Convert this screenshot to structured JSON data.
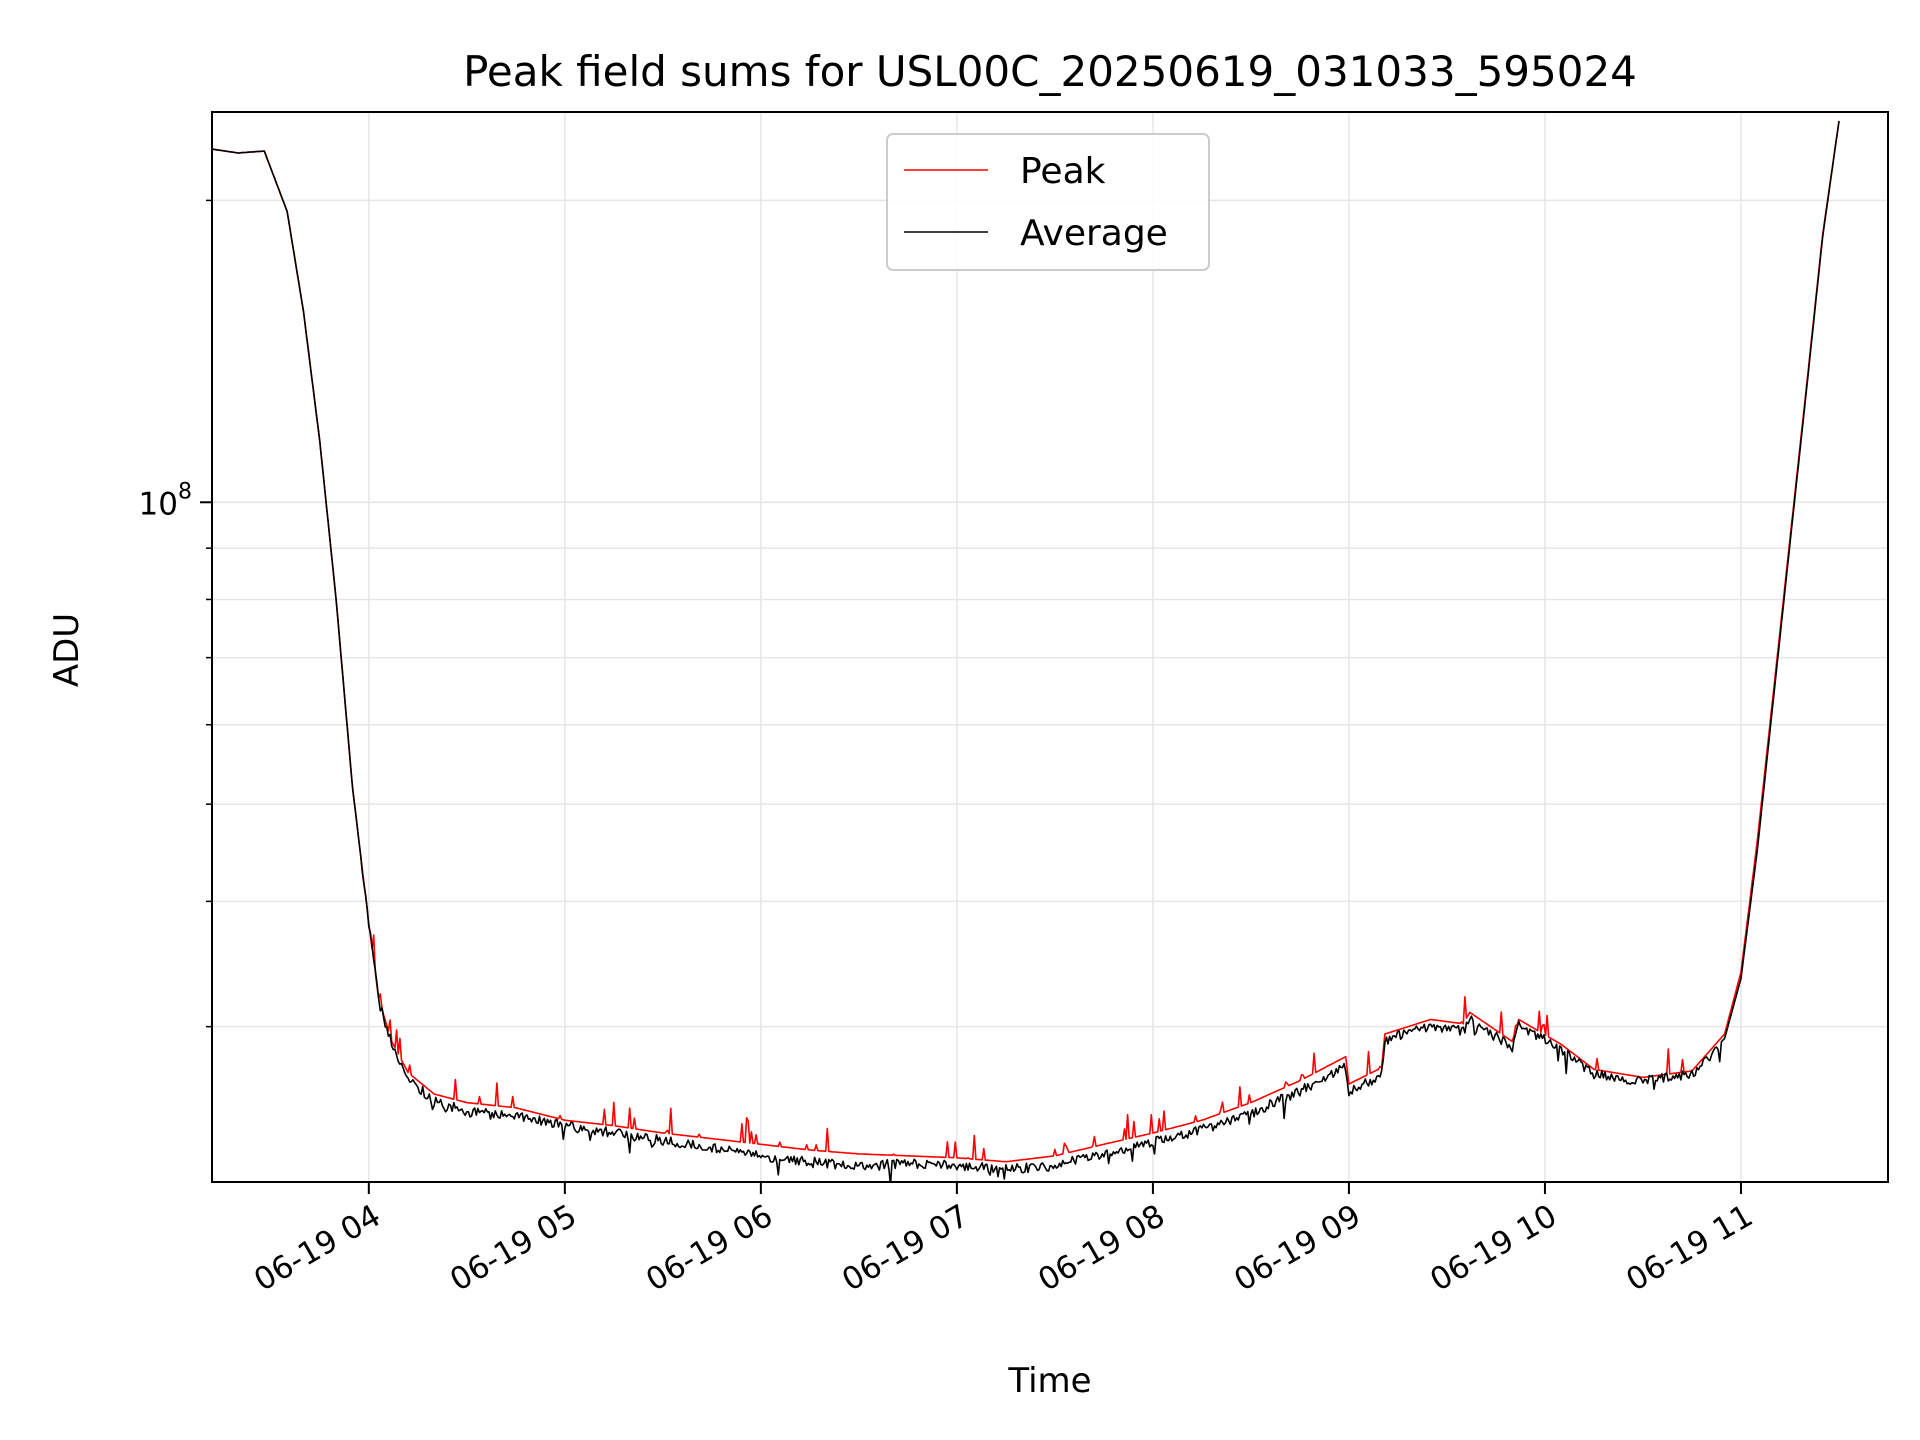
{
  "chart_data": {
    "type": "line",
    "title": "Peak field sums for USL00C_20250619_031033_595024",
    "xlabel": "Time",
    "ylabel": "ADU",
    "yscale": "log",
    "x_range": [
      "2025-06-19 03:12",
      "2025-06-19 11:45"
    ],
    "ylim": [
      21000000,
      245000000
    ],
    "x_ticks": [
      {
        "time": "2025-06-19 04:00",
        "label": "06-19 04"
      },
      {
        "time": "2025-06-19 05:00",
        "label": "06-19 05"
      },
      {
        "time": "2025-06-19 06:00",
        "label": "06-19 06"
      },
      {
        "time": "2025-06-19 07:00",
        "label": "06-19 07"
      },
      {
        "time": "2025-06-19 08:00",
        "label": "06-19 08"
      },
      {
        "time": "2025-06-19 09:00",
        "label": "06-19 09"
      },
      {
        "time": "2025-06-19 10:00",
        "label": "06-19 10"
      },
      {
        "time": "2025-06-19 11:00",
        "label": "06-19 11"
      }
    ],
    "y_major_ticks": [
      {
        "value": 100000000,
        "base": "10",
        "exp": "8"
      }
    ],
    "y_minor_ticks": [
      30000000,
      40000000,
      50000000,
      60000000,
      70000000,
      80000000,
      90000000,
      200000000
    ],
    "grid": true,
    "legend": {
      "position": "top-center"
    },
    "series": [
      {
        "name": "Peak",
        "color": "#ff0000",
        "points": [
          [
            "2025-06-19 03:12",
            225000000
          ],
          [
            "2025-06-19 03:20",
            223000000
          ],
          [
            "2025-06-19 03:28",
            224000000
          ],
          [
            "2025-06-19 03:35",
            195000000
          ],
          [
            "2025-06-19 03:40",
            155000000
          ],
          [
            "2025-06-19 03:45",
            115000000
          ],
          [
            "2025-06-19 03:50",
            80000000
          ],
          [
            "2025-06-19 03:55",
            52000000
          ],
          [
            "2025-06-19 04:00",
            38000000
          ],
          [
            "2025-06-19 04:03",
            32000000
          ],
          [
            "2025-06-19 04:07",
            29000000
          ],
          [
            "2025-06-19 04:12",
            27000000
          ],
          [
            "2025-06-19 04:20",
            25700000
          ],
          [
            "2025-06-19 04:30",
            25200000
          ],
          [
            "2025-06-19 04:45",
            24900000
          ],
          [
            "2025-06-19 05:00",
            24200000
          ],
          [
            "2025-06-19 05:15",
            23900000
          ],
          [
            "2025-06-19 05:30",
            23500000
          ],
          [
            "2025-06-19 05:45",
            23200000
          ],
          [
            "2025-06-19 06:00",
            22900000
          ],
          [
            "2025-06-19 06:15",
            22600000
          ],
          [
            "2025-06-19 06:30",
            22400000
          ],
          [
            "2025-06-19 06:45",
            22300000
          ],
          [
            "2025-06-19 07:00",
            22200000
          ],
          [
            "2025-06-19 07:15",
            22000000
          ],
          [
            "2025-06-19 07:30",
            22300000
          ],
          [
            "2025-06-19 07:45",
            22900000
          ],
          [
            "2025-06-19 08:00",
            23500000
          ],
          [
            "2025-06-19 08:15",
            24200000
          ],
          [
            "2025-06-19 08:30",
            25200000
          ],
          [
            "2025-06-19 08:45",
            26500000
          ],
          [
            "2025-06-19 08:59",
            28000000
          ],
          [
            "2025-06-19 09:00",
            26300000
          ],
          [
            "2025-06-19 09:10",
            27300000
          ],
          [
            "2025-06-19 09:11",
            29500000
          ],
          [
            "2025-06-19 09:25",
            30500000
          ],
          [
            "2025-06-19 09:35",
            30200000
          ],
          [
            "2025-06-19 09:37",
            31000000
          ],
          [
            "2025-06-19 09:50",
            29000000
          ],
          [
            "2025-06-19 09:52",
            30500000
          ],
          [
            "2025-06-19 10:05",
            28800000
          ],
          [
            "2025-06-19 10:15",
            27200000
          ],
          [
            "2025-06-19 10:30",
            26700000
          ],
          [
            "2025-06-19 10:45",
            27100000
          ],
          [
            "2025-06-19 10:55",
            29500000
          ],
          [
            "2025-06-19 11:00",
            34000000
          ],
          [
            "2025-06-19 11:05",
            46000000
          ],
          [
            "2025-06-19 11:10",
            65000000
          ],
          [
            "2025-06-19 11:15",
            92000000
          ],
          [
            "2025-06-19 11:20",
            130000000
          ],
          [
            "2025-06-19 11:25",
            185000000
          ],
          [
            "2025-06-19 11:30",
            240000000
          ]
        ]
      },
      {
        "name": "Average",
        "color": "#000000",
        "points": [
          [
            "2025-06-19 03:12",
            225000000
          ],
          [
            "2025-06-19 03:20",
            223000000
          ],
          [
            "2025-06-19 03:28",
            224000000
          ],
          [
            "2025-06-19 03:35",
            195000000
          ],
          [
            "2025-06-19 03:40",
            155000000
          ],
          [
            "2025-06-19 03:45",
            115000000
          ],
          [
            "2025-06-19 03:50",
            80000000
          ],
          [
            "2025-06-19 03:55",
            52000000
          ],
          [
            "2025-06-19 04:00",
            38000000
          ],
          [
            "2025-06-19 04:03",
            32000000
          ],
          [
            "2025-06-19 04:07",
            29000000
          ],
          [
            "2025-06-19 04:12",
            26800000
          ],
          [
            "2025-06-19 04:20",
            25400000
          ],
          [
            "2025-06-19 04:30",
            24800000
          ],
          [
            "2025-06-19 04:45",
            24500000
          ],
          [
            "2025-06-19 05:00",
            24000000
          ],
          [
            "2025-06-19 05:15",
            23600000
          ],
          [
            "2025-06-19 05:30",
            23200000
          ],
          [
            "2025-06-19 05:45",
            22800000
          ],
          [
            "2025-06-19 06:00",
            22400000
          ],
          [
            "2025-06-19 06:15",
            22100000
          ],
          [
            "2025-06-19 06:30",
            21900000
          ],
          [
            "2025-06-19 06:45",
            22000000
          ],
          [
            "2025-06-19 07:00",
            21900000
          ],
          [
            "2025-06-19 07:15",
            21700000
          ],
          [
            "2025-06-19 07:30",
            21900000
          ],
          [
            "2025-06-19 07:45",
            22500000
          ],
          [
            "2025-06-19 08:00",
            23100000
          ],
          [
            "2025-06-19 08:15",
            23800000
          ],
          [
            "2025-06-19 08:30",
            24700000
          ],
          [
            "2025-06-19 08:45",
            26000000
          ],
          [
            "2025-06-19 08:59",
            27500000
          ],
          [
            "2025-06-19 09:00",
            26000000
          ],
          [
            "2025-06-19 09:10",
            27000000
          ],
          [
            "2025-06-19 09:11",
            29200000
          ],
          [
            "2025-06-19 09:25",
            30200000
          ],
          [
            "2025-06-19 09:35",
            29800000
          ],
          [
            "2025-06-19 09:37",
            30800000
          ],
          [
            "2025-06-19 09:50",
            28700000
          ],
          [
            "2025-06-19 09:52",
            30300000
          ],
          [
            "2025-06-19 10:05",
            28600000
          ],
          [
            "2025-06-19 10:15",
            27000000
          ],
          [
            "2025-06-19 10:30",
            26600000
          ],
          [
            "2025-06-19 10:45",
            27000000
          ],
          [
            "2025-06-19 10:55",
            29200000
          ],
          [
            "2025-06-19 11:00",
            33500000
          ],
          [
            "2025-06-19 11:05",
            45000000
          ],
          [
            "2025-06-19 11:10",
            64000000
          ],
          [
            "2025-06-19 11:15",
            91000000
          ],
          [
            "2025-06-19 11:20",
            129000000
          ],
          [
            "2025-06-19 11:25",
            184000000
          ],
          [
            "2025-06-19 11:30",
            240000000
          ]
        ]
      }
    ]
  }
}
